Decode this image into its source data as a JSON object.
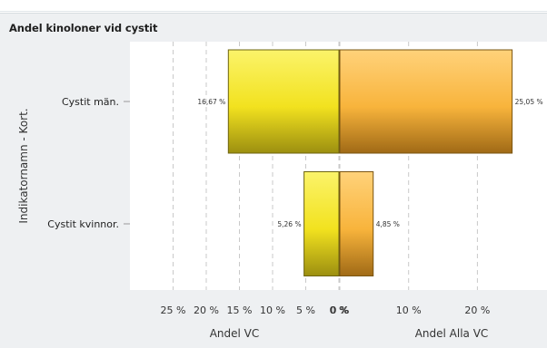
{
  "panel": {
    "title": "Andel kinoloner vid cystit"
  },
  "chart_data": {
    "type": "bar",
    "orientation": "horizontal-diverging",
    "categories": [
      "Cystit män.",
      "Cystit kvinnor."
    ],
    "series": [
      {
        "name": "Andel VC",
        "values": [
          16.67,
          5.26
        ],
        "labels": [
          "16,67 %",
          "5,26 %"
        ],
        "color": "#f2e21f",
        "side": "left"
      },
      {
        "name": "Andel Alla VC",
        "values": [
          25.05,
          4.85
        ],
        "labels": [
          "25,05 %",
          "4,85 %"
        ],
        "color": "#f8b43c",
        "side": "right"
      }
    ],
    "ylabel": "Indikatornamn - Kort.",
    "left_axis": {
      "title": "Andel VC",
      "ticks": [
        25,
        20,
        15,
        10,
        5,
        0
      ],
      "tick_labels": [
        "25 %",
        "20 %",
        "15 %",
        "10 %",
        "5 %",
        "0 %"
      ]
    },
    "right_axis": {
      "title": "Andel Alla VC",
      "ticks": [
        0,
        10,
        20
      ],
      "tick_labels": [
        "0 %",
        "10 %",
        "20 %"
      ]
    },
    "grid": true
  }
}
